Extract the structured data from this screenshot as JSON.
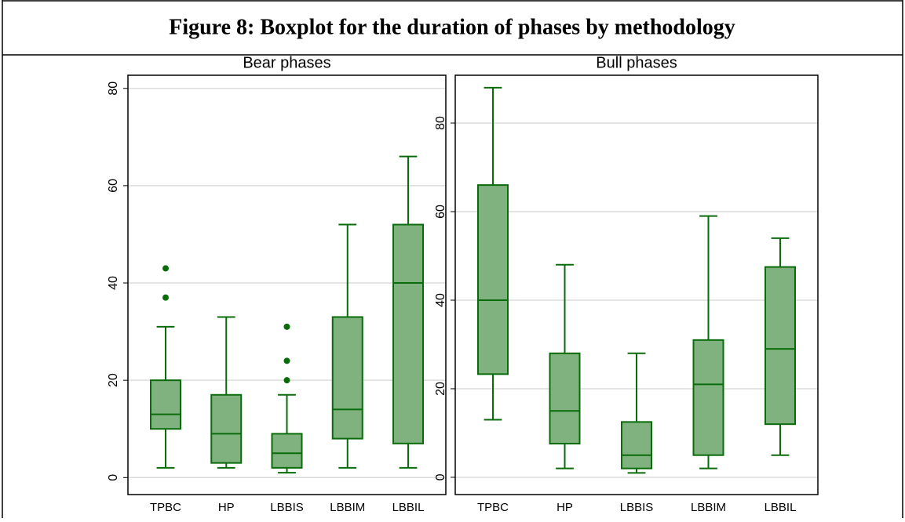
{
  "title": "Figure 8: Boxplot for the duration of phases by methodology",
  "chart_data": [
    {
      "type": "box",
      "title": "Bear phases",
      "color": "#0a6b0a",
      "fill": "#80b280",
      "categories": [
        "TPBC",
        "HP",
        "LBBIS",
        "LBBIM",
        "LBBIL"
      ],
      "boxes": [
        {
          "min": 2,
          "q1": 10,
          "median": 13,
          "q3": 20,
          "max": 31,
          "outliers": [
            37,
            43
          ]
        },
        {
          "min": 2,
          "q1": 3,
          "median": 9,
          "q3": 17,
          "max": 33,
          "outliers": []
        },
        {
          "min": 1,
          "q1": 2,
          "median": 5,
          "q3": 9,
          "max": 17,
          "outliers": [
            20,
            24,
            31
          ]
        },
        {
          "min": 2,
          "q1": 8,
          "median": 14,
          "q3": 33,
          "max": 52,
          "outliers": []
        },
        {
          "min": 2,
          "q1": 7,
          "median": 40,
          "q3": 52,
          "max": 66,
          "outliers": []
        }
      ],
      "ylim": [
        -3.5,
        82.7
      ],
      "yticks": [
        0,
        20,
        40,
        60,
        80
      ],
      "grid": true
    },
    {
      "type": "box",
      "title": "Bull phases",
      "color": "#0a6b0a",
      "fill": "#80b280",
      "categories": [
        "TPBC",
        "HP",
        "LBBIS",
        "LBBIM",
        "LBBIL"
      ],
      "boxes": [
        {
          "min": 13,
          "q1": 23.3,
          "median": 40,
          "q3": 66,
          "max": 88,
          "outliers": []
        },
        {
          "min": 2,
          "q1": 7.6,
          "median": 15,
          "q3": 28,
          "max": 48,
          "outliers": []
        },
        {
          "min": 1,
          "q1": 2,
          "median": 5,
          "q3": 12.5,
          "max": 28,
          "outliers": []
        },
        {
          "min": 2,
          "q1": 5,
          "median": 21,
          "q3": 31,
          "max": 59,
          "outliers": []
        },
        {
          "min": 5,
          "q1": 12,
          "median": 29,
          "q3": 47.5,
          "max": 54,
          "outliers": []
        }
      ],
      "ylim": [
        -3.9,
        90.8
      ],
      "yticks": [
        0,
        20,
        40,
        60,
        80
      ],
      "grid": true
    }
  ]
}
